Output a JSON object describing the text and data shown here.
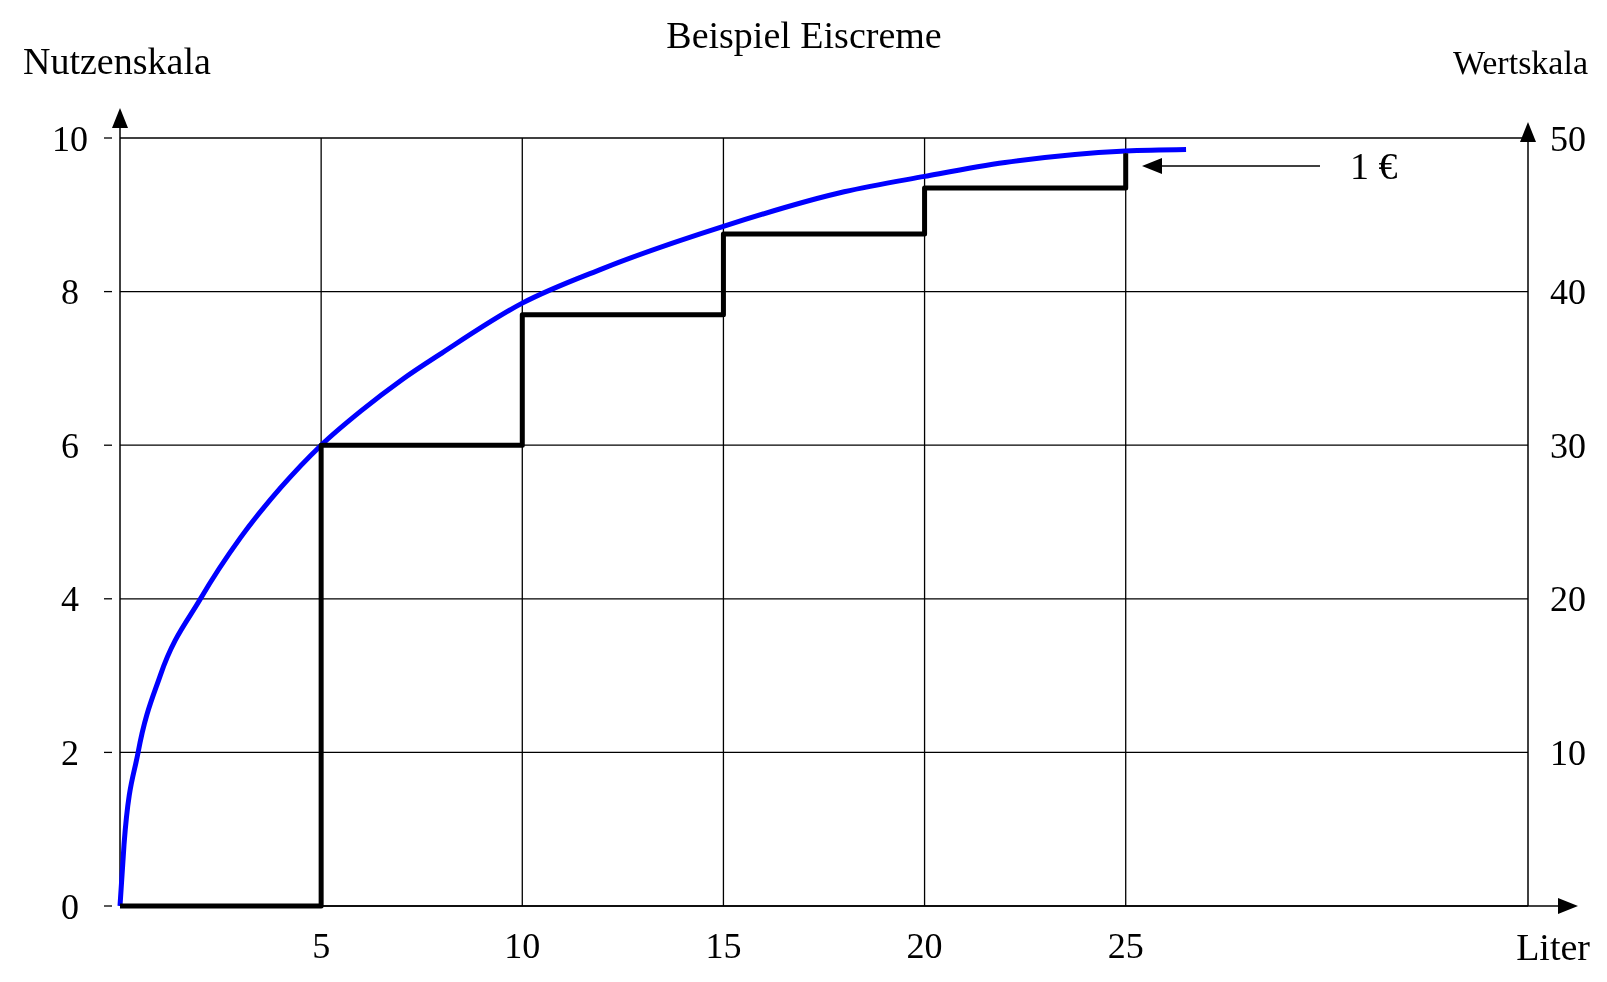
{
  "chart_data": {
    "type": "line",
    "title": "Beispiel Eiscreme",
    "xlabel": "Liter",
    "ylabel": "Nutzenskala",
    "y2label": "Wertskala",
    "xlim": [
      0,
      35
    ],
    "xticks": [
      5,
      10,
      15,
      20,
      25
    ],
    "ylim": [
      0,
      10
    ],
    "yticks": [
      0,
      2,
      4,
      6,
      8,
      10
    ],
    "y2lim": [
      0,
      50
    ],
    "y2ticks": [
      10,
      20,
      30,
      40,
      50
    ],
    "grid": true,
    "line_style": "solid",
    "marker": "none",
    "series": [
      {
        "type": "line",
        "color": "#0000ff",
        "x": [
          0,
          0.1,
          0.45,
          1,
          2,
          3,
          4,
          5,
          6,
          7,
          8,
          10,
          12,
          15,
          18,
          20,
          22,
          25,
          26.5
        ],
        "values": [
          0,
          0.8,
          2,
          3,
          4,
          4.8,
          5.45,
          6,
          6.45,
          6.85,
          7.2,
          7.85,
          8.3,
          8.85,
          9.3,
          9.5,
          9.68,
          9.83,
          9.85
        ]
      },
      {
        "type": "step",
        "color": "#000000",
        "x": [
          0,
          5,
          10,
          15,
          20,
          25
        ],
        "values": [
          0,
          6,
          7.7,
          8.75,
          9.35,
          9.8
        ]
      }
    ],
    "annotations": [
      "1 €"
    ]
  }
}
